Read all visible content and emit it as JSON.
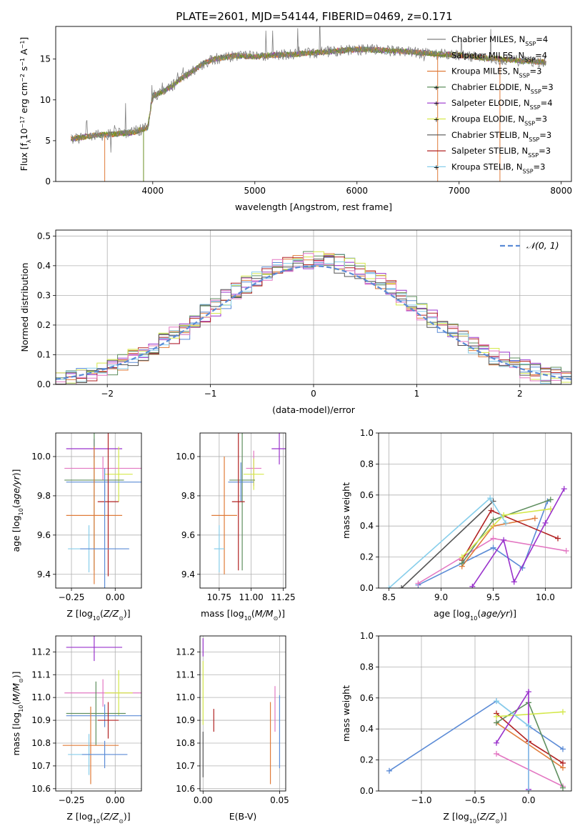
{
  "figure_title": "PLATE=2601, MJD=54144, FIBERID=0469, z=0.171",
  "colors": {
    "chabrier_miles": "#808080",
    "salpeter_miles": "#6b8e23",
    "kroupa_miles": "#e07b39",
    "chabrier_elodie": "#5f8f5f",
    "salpeter_elodie": "#9932cc",
    "kroupa_elodie": "#d4e84a",
    "chabrier_stelib": "#555555",
    "salpeter_stelib": "#b22222",
    "kroupa_stelib": "#87ceeb",
    "extra_blue": "#5b8bd6",
    "extra_pink": "#e377c2",
    "normal_curve": "#5b8bd6"
  },
  "chart_data": [
    {
      "id": "spectrum",
      "type": "line",
      "title": "PLATE=2601, MJD=54144, FIBERID=0469, z=0.171",
      "xlabel": "wavelength [Angstrom, rest frame]",
      "ylabel": "Flux [f_λ 10^-17 erg cm^-2 s^-1 A^-1]",
      "xlim": [
        3050,
        8100
      ],
      "ylim": [
        0,
        19
      ],
      "xticks": [
        4000,
        5000,
        6000,
        7000,
        8000
      ],
      "yticks": [
        0,
        5,
        10,
        15
      ],
      "grid": false,
      "legend_position": "top-right",
      "continuum": {
        "x": [
          3200,
          3400,
          3600,
          3800,
          3950,
          4000,
          4100,
          4200,
          4300,
          4400,
          4500,
          4600,
          4800,
          5000,
          5200,
          5400,
          5600,
          5800,
          6000,
          6200,
          6400,
          6600,
          6800,
          7000,
          7200,
          7400,
          7600,
          7850
        ],
        "y": [
          5.2,
          5.6,
          5.8,
          6.0,
          6.6,
          10.5,
          11.0,
          11.8,
          12.8,
          13.6,
          14.5,
          15.0,
          15.4,
          15.3,
          15.5,
          15.6,
          15.8,
          16.0,
          16.2,
          16.1,
          16.0,
          15.8,
          15.6,
          15.5,
          15.2,
          15.0,
          14.8,
          14.6
        ]
      },
      "series": [
        {
          "name": "Chabrier MILES, N_SSP=4",
          "label": "Chabrier MILES, N",
          "nssp": "=4",
          "color": "#808080"
        },
        {
          "name": "Salpeter MILES, N_SSP=4",
          "label": "Salpeter MILES, N",
          "nssp": "=4",
          "color": "#6b8e23"
        },
        {
          "name": "Kroupa MILES, N_SSP=3",
          "label": "Kroupa MILES, N",
          "nssp": "=3",
          "color": "#e07b39"
        },
        {
          "name": "Chabrier ELODIE, N_SSP=3",
          "label": "Chabrier ELODIE, N",
          "nssp": "=3",
          "color": "#5f8f5f"
        },
        {
          "name": "Salpeter ELODIE, N_SSP=4",
          "label": "Salpeter ELODIE, N",
          "nssp": "=4",
          "color": "#9932cc"
        },
        {
          "name": "Kroupa ELODIE, N_SSP=3",
          "label": "Kroupa ELODIE, N",
          "nssp": "=3",
          "color": "#d4e84a"
        },
        {
          "name": "Chabrier STELIB, N_SSP=3",
          "label": "Chabrier STELIB, N",
          "nssp": "=3",
          "color": "#555555"
        },
        {
          "name": "Salpeter STELIB, N_SSP=3",
          "label": "Salpeter STELIB, N",
          "nssp": "=3",
          "color": "#b22222"
        },
        {
          "name": "Kroupa STELIB, N_SSP=3",
          "label": "Kroupa STELIB, N",
          "nssp": "=3",
          "color": "#87ceeb"
        }
      ]
    },
    {
      "id": "residual_hist",
      "type": "bar",
      "xlabel": "(data-model)/error",
      "ylabel": "Normed distribution",
      "xlim": [
        -2.5,
        2.5
      ],
      "ylim": [
        0,
        0.52
      ],
      "xticks": [
        -2,
        -1,
        0,
        1,
        2
      ],
      "xtick_labels": [
        "−2",
        "−1",
        "0",
        "1",
        "2"
      ],
      "yticks": [
        0.0,
        0.1,
        0.2,
        0.3,
        0.4,
        0.5
      ],
      "grid": true,
      "legend_position": "top-right",
      "legend_label": "𝒩(0, 1)",
      "normal_curve": {
        "mean": 0,
        "sigma": 1
      },
      "bin_width": 0.1
    },
    {
      "id": "age_vs_Z",
      "type": "scatter",
      "xlabel": "Z [log10(Z/Z⊙)]",
      "ylabel": "age  [log10(age/yr)]",
      "xlim": [
        -0.34,
        0.15
      ],
      "ylim": [
        9.33,
        10.12
      ],
      "xticks": [
        -0.25,
        0.0
      ],
      "xtick_labels": [
        "−0.25",
        "0.00"
      ],
      "yticks": [
        9.4,
        9.6,
        9.8,
        10.0
      ],
      "grid": true,
      "points": [
        {
          "x": -0.12,
          "y": 10.04,
          "xerr": 0.16,
          "yerr": 0.05,
          "color": "#9932cc"
        },
        {
          "x": -0.07,
          "y": 9.94,
          "xerr": 0.22,
          "yerr": 0.06,
          "color": "#e377c2"
        },
        {
          "x": 0.02,
          "y": 9.91,
          "xerr": 0.08,
          "yerr": 0.14,
          "color": "#d4e84a"
        },
        {
          "x": -0.12,
          "y": 9.88,
          "xerr": 0.17,
          "yerr": 0.46,
          "color": "#5f8f5f"
        },
        {
          "x": -0.06,
          "y": 9.87,
          "xerr": 0.22,
          "yerr": 0.07,
          "color": "#5b8bd6"
        },
        {
          "x": -0.12,
          "y": 9.7,
          "xerr": 0.16,
          "yerr": 0.35,
          "color": "#e07b39"
        },
        {
          "x": -0.04,
          "y": 9.77,
          "xerr": 0.06,
          "yerr": 0.38,
          "color": "#b22222"
        },
        {
          "x": -0.15,
          "y": 9.53,
          "xerr": 0.12,
          "yerr": 0.12,
          "color": "#87ceeb"
        },
        {
          "x": -0.06,
          "y": 9.53,
          "xerr": 0.14,
          "yerr": 0.33,
          "color": "#5b8bd6"
        }
      ]
    },
    {
      "id": "age_vs_mass",
      "type": "scatter",
      "xlabel": "mass [log10(M/M⊙)]",
      "ylabel": "",
      "xlim": [
        10.6,
        11.27
      ],
      "ylim": [
        9.33,
        10.12
      ],
      "xticks": [
        10.75,
        11.0,
        11.25
      ],
      "xtick_labels": [
        "10.75",
        "11.00",
        "11.25"
      ],
      "yticks": [
        9.4,
        9.6,
        9.8,
        10.0
      ],
      "grid": true,
      "points": [
        {
          "x": 11.22,
          "y": 10.04,
          "xerr": 0.06,
          "yerr": 0.08,
          "color": "#9932cc"
        },
        {
          "x": 11.02,
          "y": 9.94,
          "xerr": 0.06,
          "yerr": 0.09,
          "color": "#e377c2"
        },
        {
          "x": 11.02,
          "y": 9.91,
          "xerr": 0.08,
          "yerr": 0.08,
          "color": "#d4e84a"
        },
        {
          "x": 10.93,
          "y": 9.88,
          "xerr": 0.1,
          "yerr": 0.46,
          "color": "#5f8f5f"
        },
        {
          "x": 10.92,
          "y": 9.87,
          "xerr": 0.1,
          "yerr": 0.1,
          "color": "#5b8bd6"
        },
        {
          "x": 10.79,
          "y": 9.7,
          "xerr": 0.1,
          "yerr": 0.3,
          "color": "#e07b39"
        },
        {
          "x": 10.9,
          "y": 9.77,
          "xerr": 0.05,
          "yerr": 0.35,
          "color": "#b22222"
        },
        {
          "x": 10.75,
          "y": 9.53,
          "xerr": 0.04,
          "yerr": 0.12,
          "color": "#87ceeb"
        }
      ]
    },
    {
      "id": "weight_vs_age",
      "type": "line",
      "xlabel": "age  [log10(age/yr)]",
      "ylabel": "mass weight",
      "xlim": [
        8.4,
        10.25
      ],
      "ylim": [
        0,
        1
      ],
      "xticks": [
        8.5,
        9.0,
        9.5,
        10.0
      ],
      "xtick_labels": [
        "8.5",
        "9.0",
        "9.5",
        "10.0"
      ],
      "yticks": [
        0.0,
        0.2,
        0.4,
        0.6,
        0.8,
        1.0
      ],
      "grid": true,
      "series": [
        {
          "color": "#5b8bd6",
          "x": [
            8.78,
            9.5,
            9.78,
            10.02
          ],
          "y": [
            0.02,
            0.26,
            0.13,
            0.56
          ]
        },
        {
          "color": "#e377c2",
          "x": [
            8.78,
            9.5,
            10.2
          ],
          "y": [
            0.03,
            0.32,
            0.24
          ]
        },
        {
          "color": "#e07b39",
          "x": [
            9.2,
            9.5,
            9.9
          ],
          "y": [
            0.14,
            0.4,
            0.45
          ]
        },
        {
          "color": "#b22222",
          "x": [
            9.2,
            9.48,
            10.12
          ],
          "y": [
            0.18,
            0.5,
            0.32
          ]
        },
        {
          "color": "#5f8f5f",
          "x": [
            9.2,
            9.5,
            10.05
          ],
          "y": [
            0.16,
            0.44,
            0.57
          ]
        },
        {
          "color": "#d4e84a",
          "x": [
            9.2,
            9.6,
            10.05
          ],
          "y": [
            0.2,
            0.47,
            0.51
          ]
        },
        {
          "color": "#9932cc",
          "x": [
            9.3,
            9.6,
            9.7,
            10.0,
            10.18
          ],
          "y": [
            0.01,
            0.31,
            0.04,
            0.42,
            0.64
          ]
        },
        {
          "color": "#555555",
          "x": [
            8.62,
            9.5
          ],
          "y": [
            0.0,
            0.56
          ]
        },
        {
          "color": "#87ceeb",
          "x": [
            8.5,
            9.47,
            9.62
          ],
          "y": [
            0.0,
            0.58,
            0.42
          ]
        }
      ]
    },
    {
      "id": "mass_vs_Z",
      "type": "scatter",
      "xlabel": "Z [log10(Z/Z⊙)]",
      "ylabel": "mass [log10(M/M⊙)]",
      "xlim": [
        -0.34,
        0.15
      ],
      "ylim": [
        10.59,
        11.27
      ],
      "xticks": [
        -0.25,
        0.0
      ],
      "xtick_labels": [
        "−0.25",
        "0.00"
      ],
      "yticks": [
        10.6,
        10.7,
        10.8,
        10.9,
        11.0,
        11.1,
        11.2
      ],
      "grid": true,
      "points": [
        {
          "x": -0.12,
          "y": 11.22,
          "xerr": 0.16,
          "yerr": 0.06,
          "color": "#9932cc"
        },
        {
          "x": -0.07,
          "y": 11.02,
          "xerr": 0.22,
          "yerr": 0.06,
          "color": "#e377c2"
        },
        {
          "x": 0.02,
          "y": 11.02,
          "xerr": 0.08,
          "yerr": 0.1,
          "color": "#d4e84a"
        },
        {
          "x": -0.11,
          "y": 10.93,
          "xerr": 0.17,
          "yerr": 0.14,
          "color": "#5f8f5f"
        },
        {
          "x": -0.06,
          "y": 10.92,
          "xerr": 0.22,
          "yerr": 0.05,
          "color": "#5b8bd6"
        },
        {
          "x": -0.14,
          "y": 10.79,
          "xerr": 0.16,
          "yerr": 0.17,
          "color": "#e07b39"
        },
        {
          "x": -0.04,
          "y": 10.9,
          "xerr": 0.06,
          "yerr": 0.08,
          "color": "#b22222"
        },
        {
          "x": -0.15,
          "y": 10.75,
          "xerr": 0.12,
          "yerr": 0.09,
          "color": "#87ceeb"
        },
        {
          "x": -0.06,
          "y": 10.75,
          "xerr": 0.13,
          "yerr": 0.06,
          "color": "#5b8bd6"
        }
      ]
    },
    {
      "id": "mass_vs_ebv",
      "type": "scatter",
      "xlabel": "E(B-V)",
      "ylabel": "",
      "xlim": [
        -0.002,
        0.054
      ],
      "ylim": [
        10.59,
        11.27
      ],
      "xticks": [
        0.0,
        0.05
      ],
      "xtick_labels": [
        "0.00",
        "0.05"
      ],
      "yticks": [
        10.6,
        10.7,
        10.8,
        10.9,
        11.0,
        11.1,
        11.2
      ],
      "grid": true,
      "points": [
        {
          "x": 0.0,
          "y": 11.22,
          "xerr": 0,
          "yerr": 0.04,
          "color": "#9932cc"
        },
        {
          "x": 0.0,
          "y": 11.02,
          "xerr": 0,
          "yerr": 0.14,
          "color": "#d4e84a"
        },
        {
          "x": 0.0,
          "y": 10.75,
          "xerr": 0,
          "yerr": 0.1,
          "color": "#555555"
        },
        {
          "x": 0.007,
          "y": 10.9,
          "xerr": 0,
          "yerr": 0.05,
          "color": "#b22222"
        },
        {
          "x": 0.044,
          "y": 10.8,
          "xerr": 0,
          "yerr": 0.18,
          "color": "#e07b39"
        },
        {
          "x": 0.047,
          "y": 10.95,
          "xerr": 0,
          "yerr": 0.1,
          "color": "#e377c2"
        },
        {
          "x": 0.05,
          "y": 10.85,
          "xerr": 0,
          "yerr": 0.16,
          "color": "#5b8bd6"
        }
      ]
    },
    {
      "id": "weight_vs_Z",
      "type": "line",
      "xlabel": "Z [log10(Z/Z⊙)]",
      "ylabel": "mass weight",
      "xlim": [
        -1.4,
        0.4
      ],
      "ylim": [
        0,
        1
      ],
      "xticks": [
        -1.0,
        -0.5,
        0.0
      ],
      "xtick_labels": [
        "−1.0",
        "−0.5",
        "0.0"
      ],
      "yticks": [
        0.0,
        0.2,
        0.4,
        0.6,
        0.8,
        1.0
      ],
      "grid": true,
      "series": [
        {
          "color": "#5b8bd6",
          "x": [
            -1.3,
            -0.3,
            0.0,
            0.32
          ],
          "y": [
            0.13,
            0.58,
            0.42,
            0.27
          ]
        },
        {
          "color": "#e377c2",
          "x": [
            -0.3,
            0.32
          ],
          "y": [
            0.24,
            0.03
          ]
        },
        {
          "color": "#e07b39",
          "x": [
            -0.3,
            0.32
          ],
          "y": [
            0.44,
            0.15
          ]
        },
        {
          "color": "#b22222",
          "x": [
            -0.3,
            0.0,
            0.32
          ],
          "y": [
            0.5,
            0.32,
            0.18
          ]
        },
        {
          "color": "#5f8f5f",
          "x": [
            -0.3,
            0.0,
            0.32
          ],
          "y": [
            0.44,
            0.57,
            0.02
          ]
        },
        {
          "color": "#d4e84a",
          "x": [
            -0.3,
            0.32
          ],
          "y": [
            0.48,
            0.51
          ]
        },
        {
          "color": "#9932cc",
          "x": [
            -0.3,
            0.0,
            0.0
          ],
          "y": [
            0.31,
            0.64,
            0.01
          ]
        },
        {
          "color": "#87ceeb",
          "x": [
            -0.3,
            0.0,
            0.0
          ],
          "y": [
            0.58,
            0.42,
            0.0
          ]
        }
      ]
    }
  ]
}
